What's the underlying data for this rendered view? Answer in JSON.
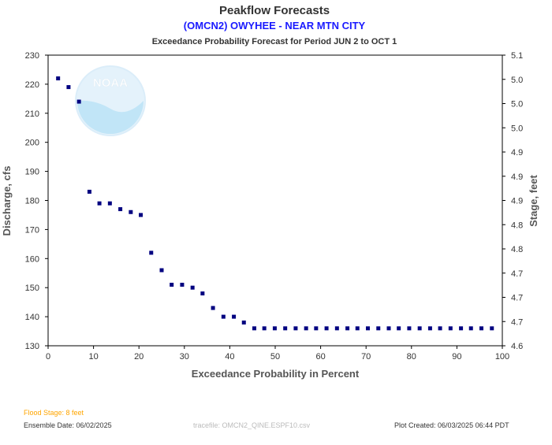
{
  "chart_data": {
    "type": "scatter",
    "title": "Peakflow Forecasts",
    "subtitle": "(OMCN2) OWYHEE - NEAR MTN CITY",
    "description": "Exceedance Probability Forecast for Period JUN 2 to OCT 1",
    "xlabel": "Exceedance Probability in Percent",
    "ylabel": "Discharge, cfs",
    "y2label": "Stage, feet",
    "xlim": [
      0,
      100
    ],
    "ylim": [
      130,
      230
    ],
    "grid": false,
    "x_ticks": [
      "0",
      "10",
      "20",
      "30",
      "40",
      "50",
      "60",
      "70",
      "80",
      "90",
      "100"
    ],
    "y_ticks": [
      "130",
      "140",
      "150",
      "160",
      "170",
      "180",
      "190",
      "200",
      "210",
      "220",
      "230"
    ],
    "y2_ticks": [
      "4.6",
      "4.7",
      "4.7",
      "4.7",
      "4.8",
      "4.8",
      "4.9",
      "4.9",
      "4.9",
      "5.0",
      "5.0",
      "5.0",
      "5.1"
    ],
    "x": [
      2.2,
      4.5,
      6.8,
      9.1,
      11.3,
      13.6,
      15.9,
      18.2,
      20.4,
      22.7,
      25.0,
      27.2,
      29.5,
      31.8,
      34.0,
      36.3,
      38.6,
      40.9,
      43.1,
      45.4,
      47.6,
      49.9,
      52.2,
      54.5,
      56.8,
      59.0,
      61.3,
      63.6,
      65.9,
      68.1,
      70.4,
      72.7,
      75.0,
      77.2,
      79.5,
      81.8,
      84.1,
      86.3,
      88.6,
      90.9,
      93.1,
      95.4,
      97.7
    ],
    "y": [
      222,
      219,
      214,
      183,
      179,
      179,
      177,
      176,
      175,
      162,
      156,
      151,
      151,
      150,
      148,
      143,
      140,
      140,
      138,
      136,
      136,
      136,
      136,
      136,
      136,
      136,
      136,
      136,
      136,
      136,
      136,
      136,
      136,
      136,
      136,
      136,
      136,
      136,
      136,
      136,
      136,
      136,
      136
    ],
    "marker_color": "#000080"
  },
  "footer": {
    "flood_stage": "Flood Stage: 8 feet",
    "ensemble_date": "Ensemble Date: 06/02/2025",
    "tracefile": "tracefile: OMCN2_QINE.ESPF10.csv",
    "plot_created": "Plot Created: 06/03/2025 06:44 PDT"
  },
  "colors": {
    "subtitle": "#1a1aff",
    "flood_stage": "#ffa500",
    "footer": "#333333",
    "tracefile": "#bbbbbb",
    "watermark": "#d9eefa"
  },
  "watermark_text": "NOAA"
}
